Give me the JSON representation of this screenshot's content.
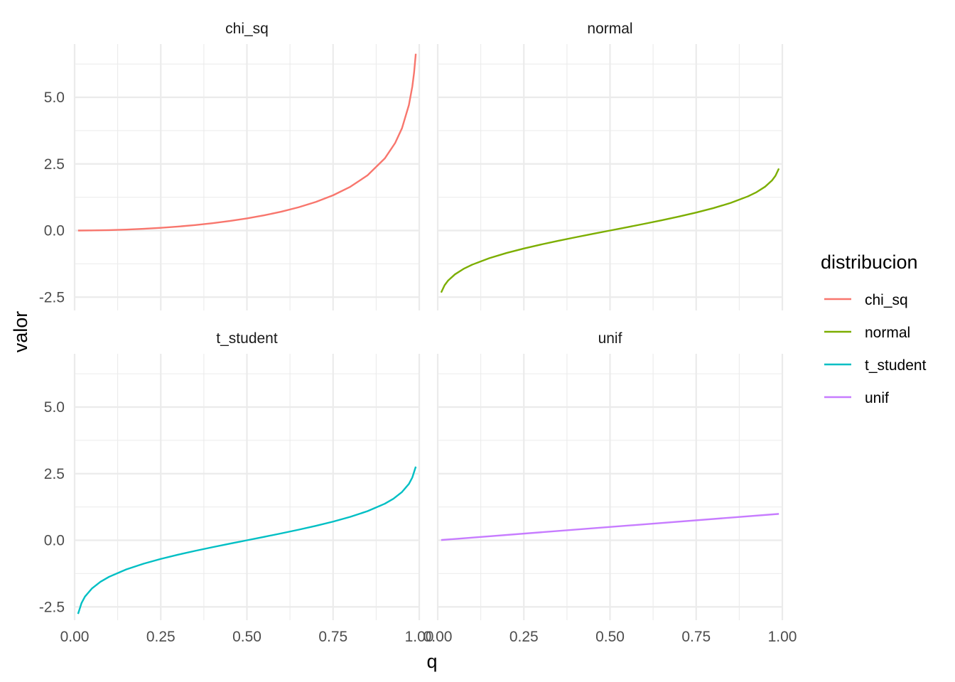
{
  "chart_data": {
    "type": "line",
    "facets": [
      "chi_sq",
      "normal",
      "t_student",
      "unif"
    ],
    "xlabel": "q",
    "ylabel": "valor",
    "xlim": [
      0,
      1
    ],
    "ylim": [
      -3.0,
      7.0
    ],
    "x_ticks": [
      "0.00",
      "0.25",
      "0.50",
      "0.75",
      "1.00"
    ],
    "y_ticks": [
      "-2.5",
      "0.0",
      "2.5",
      "5.0"
    ],
    "x_tick_values": [
      0,
      0.25,
      0.5,
      0.75,
      1.0
    ],
    "y_tick_values": [
      -2.5,
      0,
      2.5,
      5.0
    ],
    "grid": true,
    "legend": {
      "title": "distribucion",
      "position": "right",
      "entries": [
        "chi_sq",
        "normal",
        "t_student",
        "unif"
      ]
    },
    "series": [
      {
        "name": "chi_sq",
        "color": "#F8766D",
        "x": [
          0.01,
          0.05,
          0.1,
          0.15,
          0.2,
          0.25,
          0.3,
          0.35,
          0.4,
          0.45,
          0.5,
          0.55,
          0.6,
          0.65,
          0.7,
          0.75,
          0.8,
          0.85,
          0.9,
          0.93,
          0.95,
          0.97,
          0.98,
          0.985,
          0.99
        ],
        "y": [
          0.0002,
          0.0039,
          0.0158,
          0.0358,
          0.0642,
          0.1015,
          0.1485,
          0.2059,
          0.275,
          0.3573,
          0.4549,
          0.5707,
          0.7083,
          0.8735,
          1.0742,
          1.3233,
          1.6424,
          2.0723,
          2.7055,
          3.2831,
          3.8415,
          4.7093,
          5.4119,
          5.9219,
          6.6349
        ]
      },
      {
        "name": "normal",
        "color": "#7CAE00",
        "x": [
          0.01,
          0.02,
          0.03,
          0.05,
          0.075,
          0.1,
          0.15,
          0.2,
          0.25,
          0.3,
          0.35,
          0.4,
          0.45,
          0.5,
          0.55,
          0.6,
          0.65,
          0.7,
          0.75,
          0.8,
          0.85,
          0.9,
          0.925,
          0.95,
          0.97,
          0.98,
          0.99
        ],
        "y": [
          -2.3263,
          -2.0537,
          -1.8808,
          -1.6449,
          -1.4395,
          -1.2816,
          -1.0364,
          -0.8416,
          -0.6745,
          -0.5244,
          -0.3853,
          -0.2533,
          -0.1257,
          0.0,
          0.1257,
          0.2533,
          0.3853,
          0.5244,
          0.6745,
          0.8416,
          1.0364,
          1.2816,
          1.4395,
          1.6449,
          1.8808,
          2.0537,
          2.3263
        ]
      },
      {
        "name": "t_student",
        "color": "#00BFC4",
        "x": [
          0.01,
          0.02,
          0.03,
          0.05,
          0.075,
          0.1,
          0.15,
          0.2,
          0.25,
          0.3,
          0.35,
          0.4,
          0.45,
          0.5,
          0.55,
          0.6,
          0.65,
          0.7,
          0.75,
          0.8,
          0.85,
          0.9,
          0.925,
          0.95,
          0.97,
          0.98,
          0.99
        ],
        "y": [
          -2.7638,
          -2.3593,
          -2.1147,
          -1.8125,
          -1.5588,
          -1.3722,
          -1.0931,
          -0.8791,
          -0.6998,
          -0.5415,
          -0.3966,
          -0.2602,
          -0.1289,
          0.0,
          0.1289,
          0.2602,
          0.3966,
          0.5415,
          0.6998,
          0.8791,
          1.0931,
          1.3722,
          1.5588,
          1.8125,
          2.1147,
          2.3593,
          2.7638
        ]
      },
      {
        "name": "unif",
        "color": "#C77CFF",
        "x": [
          0.01,
          0.99
        ],
        "y": [
          0.01,
          0.99
        ]
      }
    ]
  }
}
